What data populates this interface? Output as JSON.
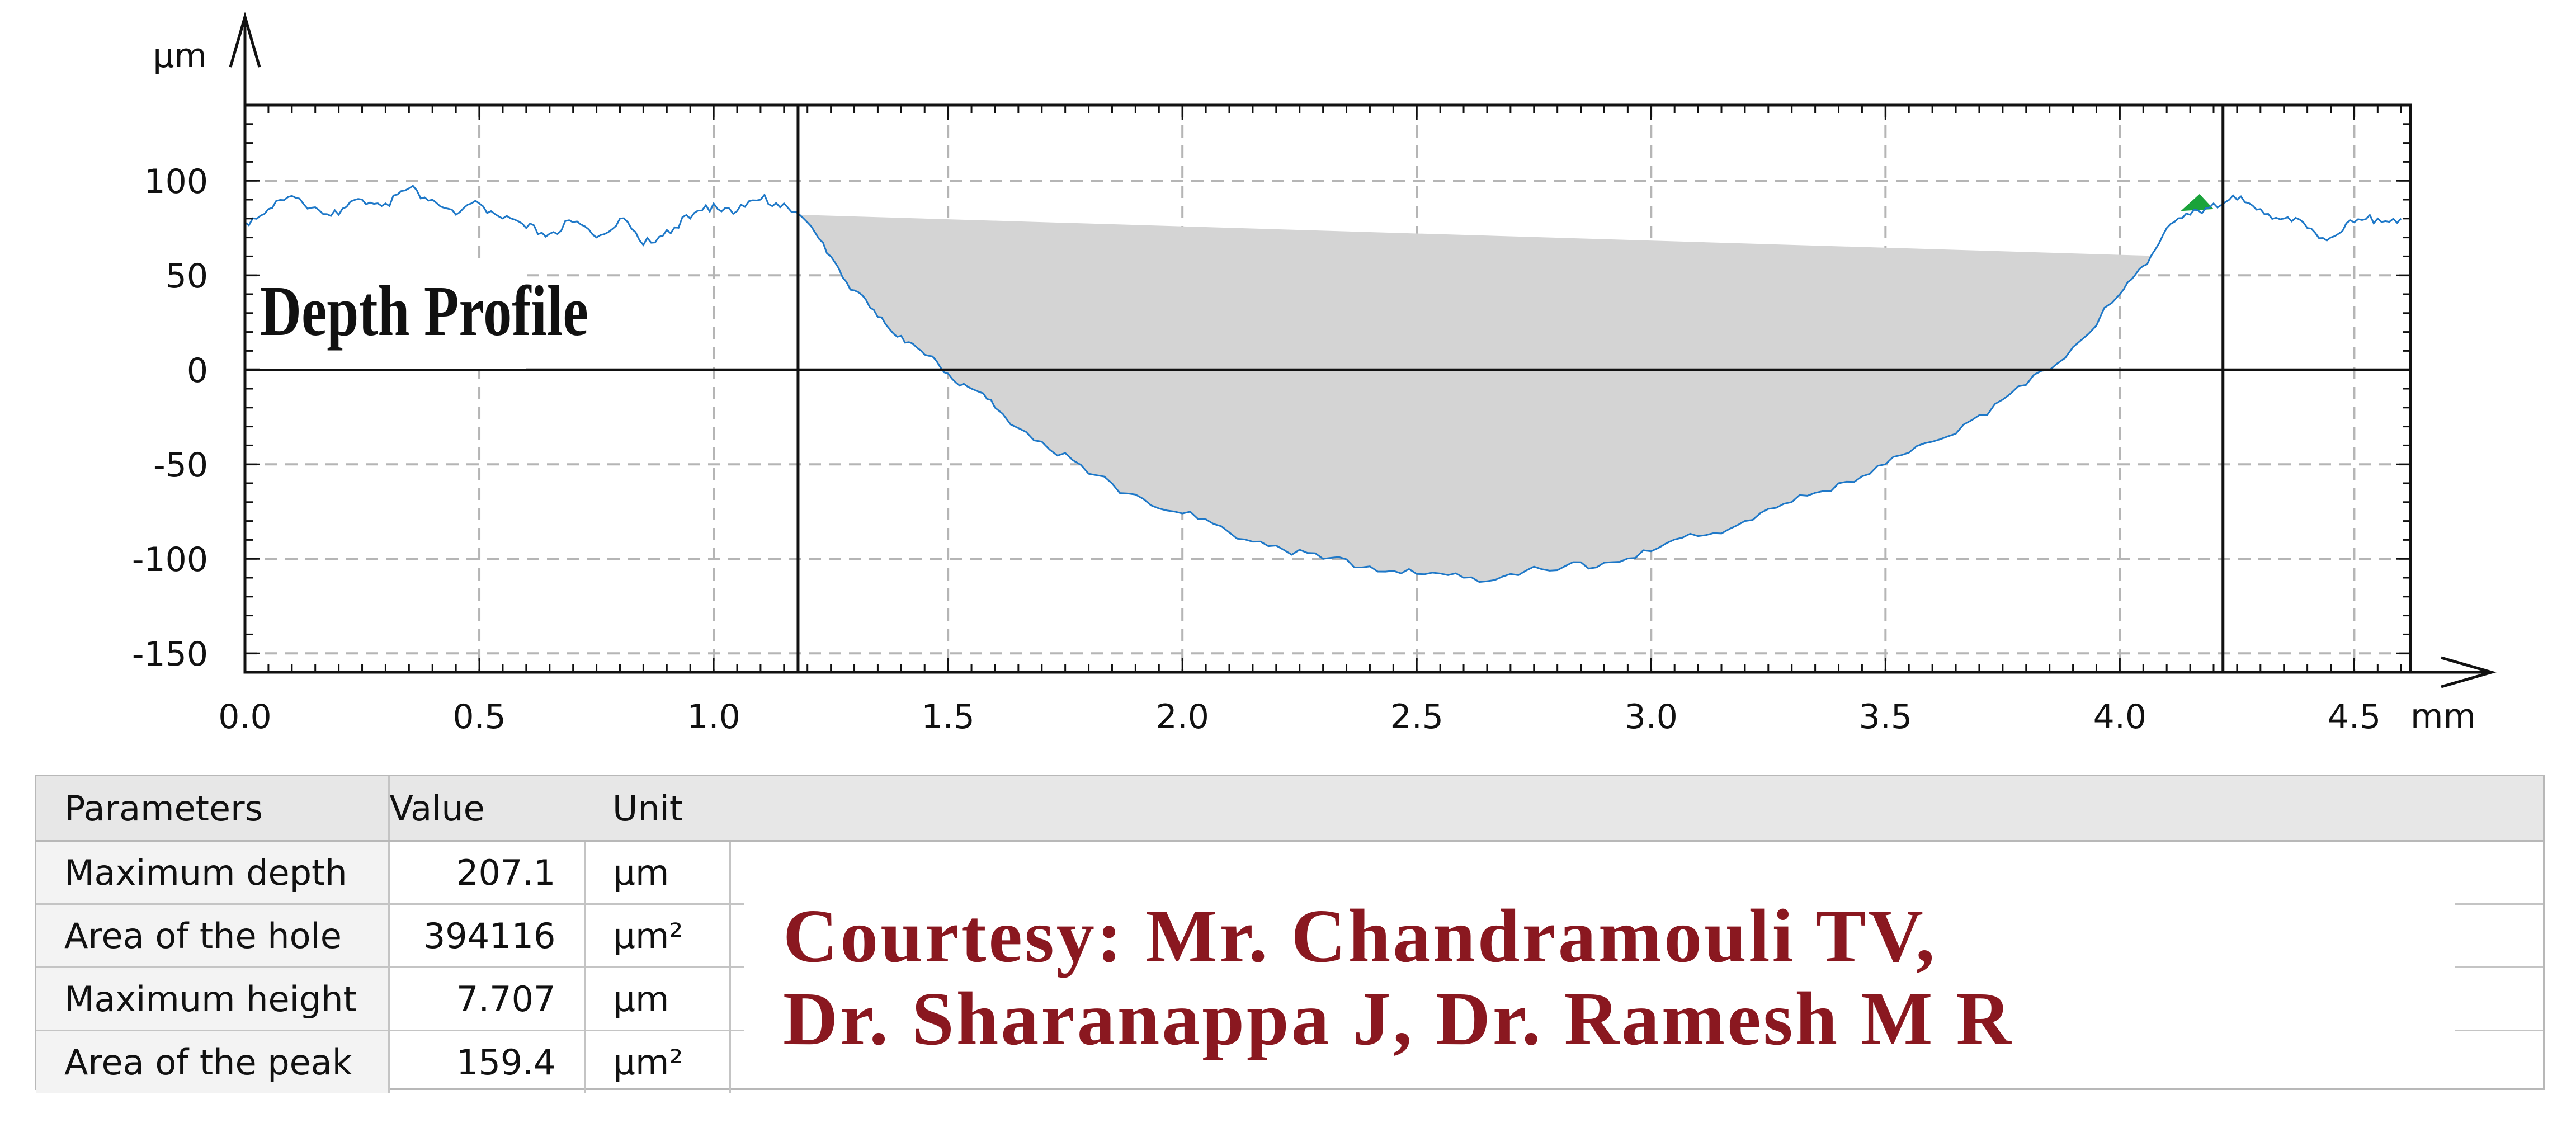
{
  "chart_data": {
    "type": "line",
    "x_unit": "mm",
    "y_unit": "µm",
    "xlim": [
      0,
      4.62
    ],
    "ylim": [
      -160,
      140
    ],
    "x_ticks": [
      "0.0",
      "0.5",
      "1.0",
      "1.5",
      "2.0",
      "2.5",
      "3.0",
      "3.5",
      "4.0",
      "4.5"
    ],
    "y_ticks": [
      "100",
      "50",
      "0",
      "-50",
      "-100",
      "-150"
    ],
    "grid": true,
    "overlay_title": "Depth Profile",
    "markers_x": [
      1.18,
      4.22
    ],
    "hole_fill_color": "#d4d4d4",
    "peak_fill_color": "#1aa33a",
    "line_color": "#1e78c8",
    "series": [
      {
        "x": [
          0.0,
          0.05,
          0.1,
          0.15,
          0.2,
          0.25,
          0.3,
          0.35,
          0.4,
          0.45,
          0.5,
          0.55,
          0.6,
          0.65,
          0.7,
          0.75,
          0.8,
          0.85,
          0.9,
          0.95,
          1.0,
          1.05,
          1.1,
          1.15,
          1.2,
          1.25,
          1.3,
          1.35,
          1.4,
          1.45,
          1.5,
          1.55,
          1.6,
          1.7,
          1.8,
          1.9,
          2.0,
          2.1,
          2.2,
          2.3,
          2.4,
          2.5,
          2.6,
          2.7,
          2.8,
          2.9,
          3.0,
          3.1,
          3.2,
          3.3,
          3.4,
          3.5,
          3.6,
          3.7,
          3.8,
          3.9,
          4.0,
          4.05,
          4.1,
          4.15,
          4.2,
          4.25,
          4.3,
          4.35,
          4.4,
          4.45,
          4.5,
          4.55,
          4.6
        ],
        "y": [
          78,
          85,
          92,
          86,
          82,
          90,
          88,
          96,
          90,
          82,
          88,
          80,
          75,
          72,
          78,
          70,
          80,
          66,
          74,
          80,
          88,
          84,
          90,
          88,
          78,
          60,
          42,
          28,
          18,
          8,
          -2,
          -10,
          -20,
          -38,
          -55,
          -66,
          -76,
          -86,
          -93,
          -100,
          -104,
          -108,
          -110,
          -108,
          -106,
          -102,
          -96,
          -88,
          -80,
          -70,
          -60,
          -50,
          -38,
          -24,
          -8,
          12,
          40,
          55,
          75,
          82,
          88,
          90,
          85,
          80,
          75,
          70,
          78,
          80,
          80
        ]
      }
    ]
  },
  "table": {
    "headers": [
      "Parameters",
      "Value",
      "Unit"
    ],
    "rows": [
      {
        "param": "Maximum depth",
        "value": "207.1",
        "unit": "µm"
      },
      {
        "param": "Area of the hole",
        "value": "394116",
        "unit": "µm²"
      },
      {
        "param": "Maximum height",
        "value": "7.707",
        "unit": "µm"
      },
      {
        "param": "Area of the peak",
        "value": "159.4",
        "unit": "µm²"
      }
    ]
  },
  "courtesy": {
    "line1": "Courtesy: Mr. Chandramouli TV,",
    "line2": "Dr. Sharanappa J, Dr. Ramesh M R"
  }
}
